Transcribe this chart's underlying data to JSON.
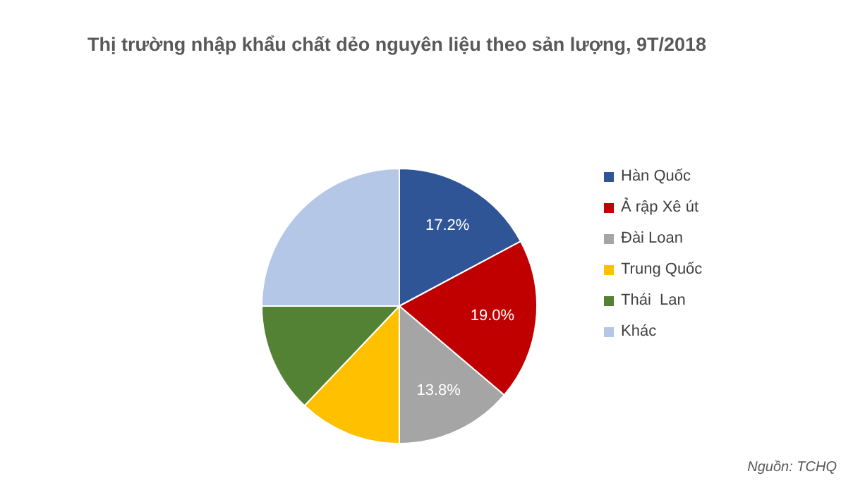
{
  "chart_data": {
    "type": "pie",
    "title": "Thị trường nhập khẩu chất dẻo nguyên liệu theo sản lượng, 9T/2018",
    "categories": [
      "Hàn Quốc",
      "Ả rập Xê út",
      "Đài Loan",
      "Trung Quốc",
      "Thái  Lan",
      "Khác"
    ],
    "values": [
      17.2,
      19.0,
      13.8,
      12.1,
      12.9,
      25.0
    ],
    "value_labels": [
      "17.2%",
      "19.0%",
      "13.8%",
      null,
      null,
      null
    ],
    "colors": [
      "#2f5597",
      "#c00000",
      "#a5a5a5",
      "#ffc000",
      "#548235",
      "#b4c7e7"
    ],
    "legend": "right",
    "annotations": [
      "Nguồn: TCHQ"
    ]
  }
}
